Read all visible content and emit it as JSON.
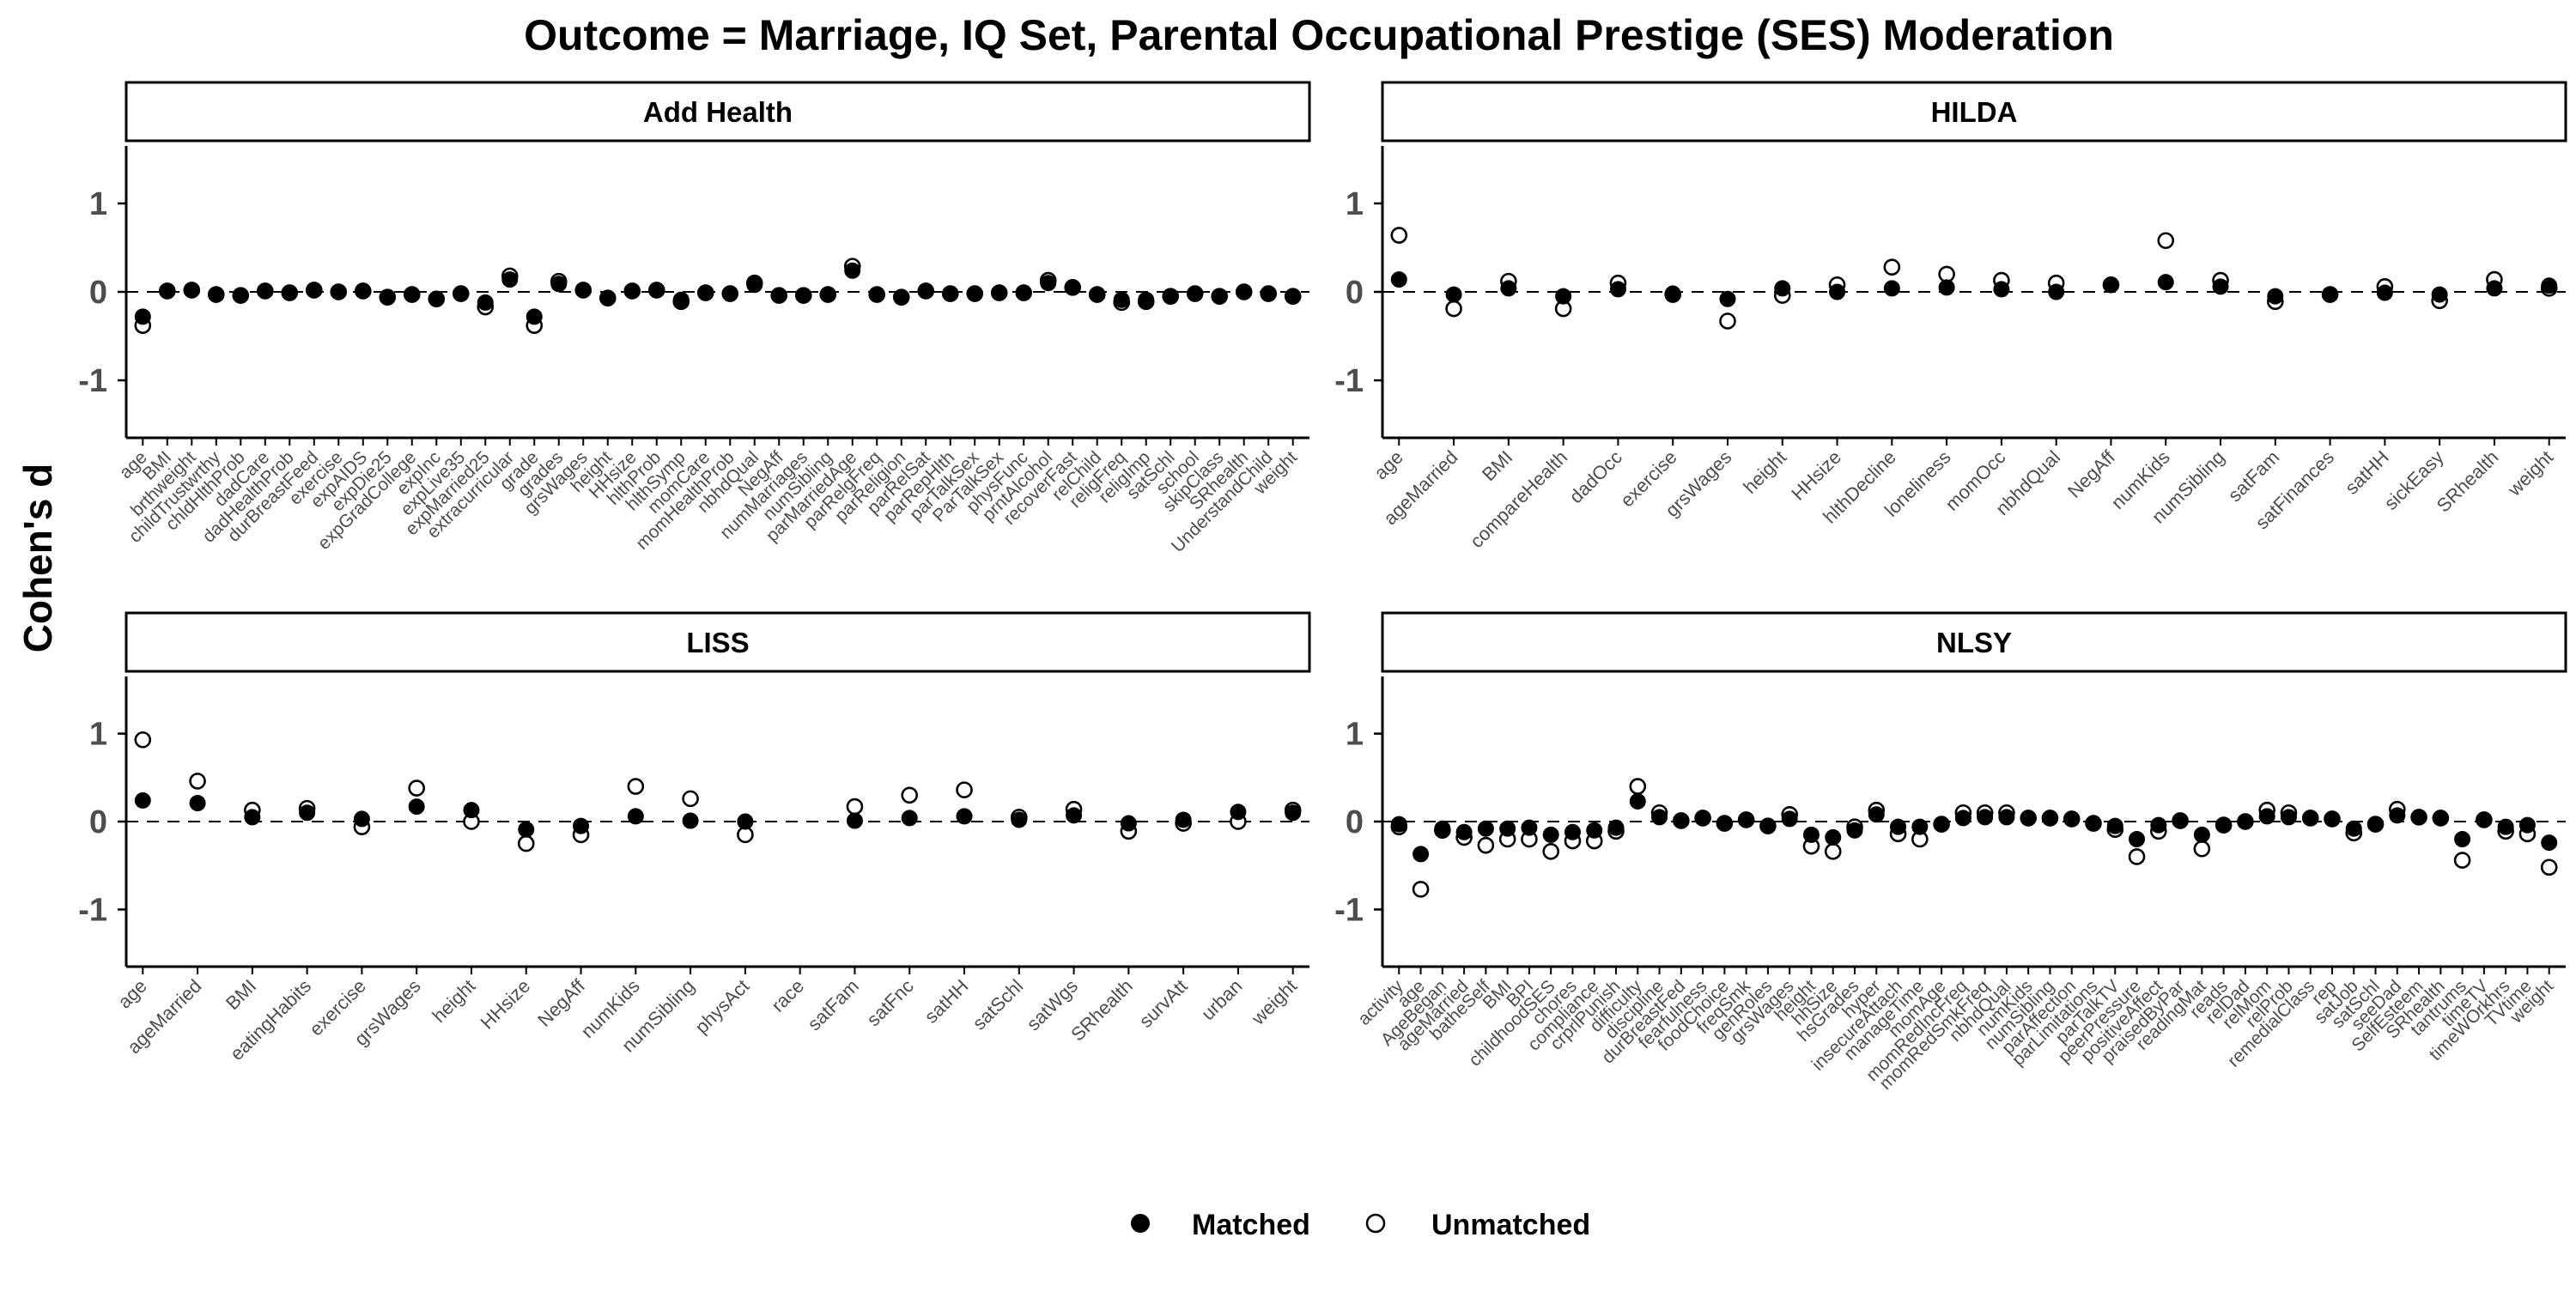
{
  "title": "Outcome = Marriage, IQ Set, Parental Occupational Prestige (SES) Moderation",
  "ylabel": "Cohen's d",
  "legend": {
    "matched_label": "Matched",
    "unmatched_label": "Unmatched",
    "placement": "bottom"
  },
  "colors": {
    "matched": "#000000",
    "unmatched": "#ffffff",
    "strip_fill": "#ffffff",
    "reference_line": "#000000"
  },
  "chart_data": [
    {
      "type": "scatter",
      "panel": "Add Health",
      "ylim": [
        -1.65,
        1.65
      ],
      "yticks": [
        -1,
        0,
        1
      ],
      "reference_line_y": 0,
      "grid": false,
      "categories": [
        "age",
        "BMI",
        "brthweight",
        "childTrustwrthy",
        "chldHlthProb",
        "dadCare",
        "dadHealthProb",
        "durBreastFeed",
        "exercise",
        "expAIDS",
        "expDie25",
        "expGradCollege",
        "expInc",
        "expLive35",
        "expMarried25",
        "extracurricular",
        "grade",
        "grades",
        "grsWages",
        "height",
        "HHsize",
        "hlthProb",
        "hlthSymp",
        "momCare",
        "momHealthProb",
        "nbhdQual",
        "NegAff",
        "numMarriages",
        "numSibling",
        "parMarriedAge",
        "parRelgFreq",
        "parReligion",
        "parRelSat",
        "parRepHlth",
        "parTalkSex",
        "ParTalkSex",
        "physFunc",
        "prntAlcohol",
        "recoverFast",
        "relChild",
        "religFreq",
        "religImp",
        "satSchl",
        "school",
        "skipClass",
        "SRhealth",
        "UnderstandChild",
        "weight"
      ],
      "series": [
        {
          "name": "Matched",
          "values": [
            -0.28,
            0.01,
            0.02,
            -0.03,
            -0.04,
            0.01,
            -0.01,
            0.02,
            0.0,
            0.01,
            -0.06,
            -0.03,
            -0.08,
            -0.02,
            -0.12,
            0.14,
            -0.28,
            0.09,
            0.02,
            -0.07,
            0.01,
            0.02,
            -0.09,
            -0.01,
            -0.02,
            0.08,
            -0.04,
            -0.04,
            -0.03,
            0.24,
            -0.03,
            -0.06,
            0.01,
            -0.02,
            -0.02,
            -0.01,
            -0.01,
            0.1,
            0.05,
            -0.03,
            -0.09,
            -0.09,
            -0.05,
            -0.02,
            -0.05,
            0.0,
            -0.02,
            -0.05
          ]
        },
        {
          "name": "Unmatched",
          "values": [
            -0.38,
            0.01,
            0.02,
            -0.03,
            -0.04,
            0.01,
            -0.01,
            0.02,
            0.0,
            0.01,
            -0.06,
            -0.03,
            -0.08,
            -0.02,
            -0.17,
            0.18,
            -0.38,
            0.12,
            0.02,
            -0.07,
            0.01,
            0.02,
            -0.11,
            -0.01,
            -0.02,
            0.1,
            -0.04,
            -0.04,
            -0.03,
            0.29,
            -0.03,
            -0.06,
            0.01,
            -0.02,
            -0.02,
            -0.01,
            -0.01,
            0.13,
            0.05,
            -0.03,
            -0.12,
            -0.11,
            -0.05,
            -0.02,
            -0.05,
            0.0,
            -0.02,
            -0.05
          ]
        }
      ]
    },
    {
      "type": "scatter",
      "panel": "HILDA",
      "ylim": [
        -1.65,
        1.65
      ],
      "yticks": [
        -1,
        0,
        1
      ],
      "reference_line_y": 0,
      "grid": false,
      "categories": [
        "age",
        "ageMarried",
        "BMI",
        "compareHealth",
        "dadOcc",
        "exercise",
        "grsWages",
        "height",
        "HHsize",
        "hlthDecline",
        "loneliness",
        "momOcc",
        "nbhdQual",
        "NegAff",
        "numKids",
        "numSibling",
        "satFam",
        "satFinances",
        "satHH",
        "sickEasy",
        "SRhealth",
        "weight"
      ],
      "series": [
        {
          "name": "Matched",
          "values": [
            0.14,
            -0.03,
            0.04,
            -0.05,
            0.03,
            -0.02,
            -0.08,
            0.04,
            0.0,
            0.04,
            0.05,
            0.03,
            0.0,
            0.08,
            0.11,
            0.06,
            -0.05,
            -0.03,
            -0.01,
            -0.03,
            0.04,
            0.07
          ]
        },
        {
          "name": "Unmatched",
          "values": [
            0.64,
            -0.19,
            0.12,
            -0.19,
            0.1,
            -0.03,
            -0.33,
            -0.04,
            0.08,
            0.28,
            0.2,
            0.13,
            0.1,
            0.08,
            0.58,
            0.13,
            -0.11,
            -0.03,
            0.06,
            -0.1,
            0.14,
            0.04
          ]
        }
      ]
    },
    {
      "type": "scatter",
      "panel": "LISS",
      "ylim": [
        -1.65,
        1.65
      ],
      "yticks": [
        -1,
        0,
        1
      ],
      "reference_line_y": 0,
      "grid": false,
      "categories": [
        "age",
        "ageMarried",
        "BMI",
        "eatingHabits",
        "exercise",
        "grsWages",
        "height",
        "HHsize",
        "NegAff",
        "numKids",
        "numSibling",
        "physAct",
        "race",
        "satFam",
        "satFnc",
        "satHH",
        "satSchl",
        "satWgs",
        "SRhealth",
        "survAtt",
        "urban",
        "weight"
      ],
      "series": [
        {
          "name": "Matched",
          "values": [
            0.24,
            0.21,
            0.05,
            0.1,
            0.03,
            0.17,
            0.13,
            -0.09,
            -0.05,
            0.06,
            0.01,
            0.0,
            null,
            0.01,
            0.04,
            0.06,
            0.02,
            0.07,
            -0.02,
            0.02,
            0.11,
            0.1
          ]
        },
        {
          "name": "Unmatched",
          "values": [
            0.93,
            0.46,
            0.13,
            0.15,
            -0.06,
            0.38,
            0.0,
            -0.25,
            -0.15,
            0.4,
            0.26,
            -0.15,
            null,
            0.17,
            0.3,
            0.36,
            0.05,
            0.14,
            -0.11,
            -0.02,
            0.0,
            0.13
          ]
        }
      ]
    },
    {
      "type": "scatter",
      "panel": "NLSY",
      "ylim": [
        -1.65,
        1.65
      ],
      "yticks": [
        -1,
        0,
        1
      ],
      "reference_line_y": 0,
      "grid": false,
      "categories": [
        "activity",
        "age",
        "AgeBegan",
        "ageMarried",
        "batheSelf",
        "BMI",
        "BPI",
        "childhoodSES",
        "chores",
        "compliance",
        "crprlPunish",
        "difficulty",
        "discipline",
        "durBreastFed",
        "fearfulness",
        "foodChoice",
        "freqSmk",
        "genRoles",
        "grsWages",
        "height",
        "hhSize",
        "hsGrades",
        "hyper",
        "insecureAttach",
        "manageTime",
        "momAge",
        "momRedIncFreq",
        "momRedSmkFreq",
        "nbhdQual",
        "numKids",
        "numSibling",
        "parAffection",
        "parLimitations",
        "parTalkTV",
        "peerPressure",
        "positiveAffect",
        "praisedByPar",
        "readingMat",
        "reads",
        "relDad",
        "relMom",
        "relProb",
        "remedialClass",
        "rep",
        "satJob",
        "satSchl",
        "seeDad",
        "SelfEsteem",
        "SRhealth",
        "tantrums",
        "timeTV",
        "timeWOrkhrs",
        "TVtime",
        "weight"
      ],
      "series": [
        {
          "name": "Matched",
          "values": [
            -0.03,
            -0.37,
            -0.08,
            -0.12,
            -0.08,
            -0.08,
            -0.07,
            -0.15,
            -0.12,
            -0.1,
            -0.07,
            0.23,
            0.05,
            0.01,
            0.04,
            -0.02,
            0.02,
            -0.05,
            0.03,
            -0.15,
            -0.18,
            -0.1,
            0.08,
            -0.06,
            -0.06,
            -0.03,
            0.04,
            0.05,
            0.05,
            0.04,
            0.04,
            0.03,
            -0.02,
            -0.05,
            -0.2,
            -0.04,
            0.01,
            -0.15,
            -0.04,
            0.0,
            0.06,
            0.05,
            0.04,
            0.03,
            -0.08,
            -0.03,
            0.07,
            0.05,
            0.04,
            -0.2,
            0.02,
            -0.06,
            -0.04,
            -0.24
          ]
        },
        {
          "name": "Unmatched",
          "values": [
            -0.06,
            -0.77,
            -0.1,
            -0.18,
            -0.27,
            -0.2,
            -0.2,
            -0.34,
            -0.22,
            -0.22,
            -0.11,
            0.4,
            0.1,
            0.01,
            0.04,
            -0.02,
            0.02,
            -0.05,
            0.08,
            -0.28,
            -0.34,
            -0.06,
            0.13,
            -0.14,
            -0.2,
            -0.03,
            0.1,
            0.1,
            0.1,
            0.04,
            0.04,
            0.03,
            -0.02,
            -0.09,
            -0.4,
            -0.11,
            0.01,
            -0.31,
            -0.04,
            0.0,
            0.13,
            0.1,
            0.04,
            0.03,
            -0.13,
            -0.03,
            0.14,
            0.05,
            0.04,
            -0.44,
            0.02,
            -0.11,
            -0.14,
            -0.52
          ]
        }
      ]
    }
  ]
}
